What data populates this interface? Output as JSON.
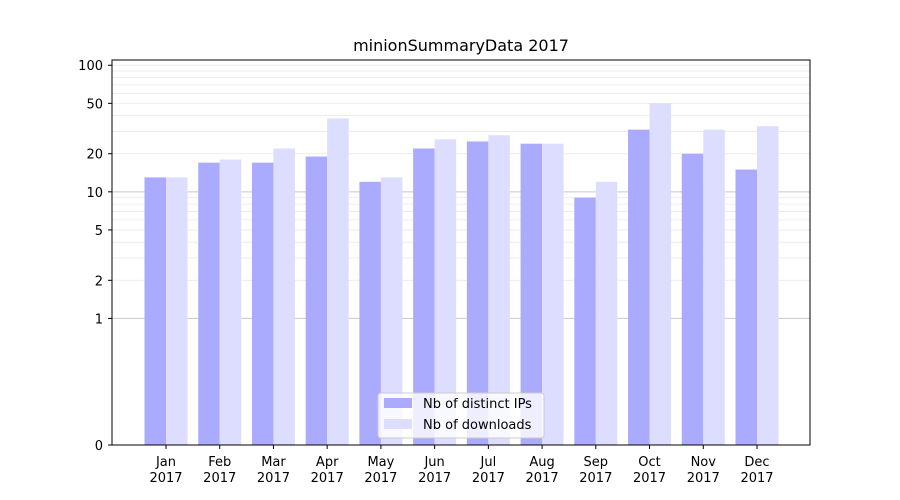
{
  "chart_data": {
    "type": "bar",
    "title": "minionSummaryData 2017",
    "xlabel": "",
    "ylabel": "",
    "y_scale": "symlog",
    "ylim": [
      0,
      110
    ],
    "categories": [
      [
        "Jan",
        "2017"
      ],
      [
        "Feb",
        "2017"
      ],
      [
        "Mar",
        "2017"
      ],
      [
        "Apr",
        "2017"
      ],
      [
        "May",
        "2017"
      ],
      [
        "Jun",
        "2017"
      ],
      [
        "Jul",
        "2017"
      ],
      [
        "Aug",
        "2017"
      ],
      [
        "Sep",
        "2017"
      ],
      [
        "Oct",
        "2017"
      ],
      [
        "Nov",
        "2017"
      ],
      [
        "Dec",
        "2017"
      ]
    ],
    "yticks": [
      "0",
      "1",
      "2",
      "5",
      "10",
      "20",
      "50",
      "100"
    ],
    "ytick_values": [
      0,
      1,
      2,
      5,
      10,
      20,
      50,
      100
    ],
    "grid": true,
    "legend_position": "bottom-center",
    "series": [
      {
        "name": "Nb of distinct IPs",
        "color": "#aaaaff",
        "values": [
          13,
          17,
          17,
          19,
          12,
          22,
          25,
          24,
          9,
          31,
          20,
          15
        ]
      },
      {
        "name": "Nb of downloads",
        "color": "#ddddff",
        "values": [
          13,
          18,
          22,
          38,
          13,
          26,
          28,
          24,
          12,
          50,
          31,
          33
        ]
      }
    ]
  }
}
